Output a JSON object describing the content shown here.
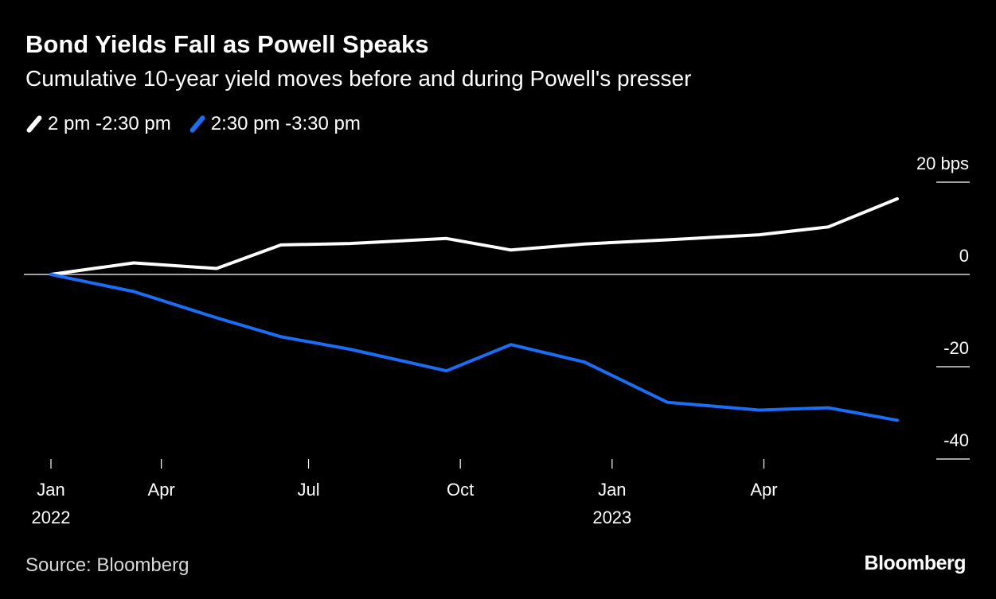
{
  "header": {
    "title": "Bond Yields Fall as Powell Speaks",
    "subtitle": "Cumulative 10-year yield moves before and during Powell's presser"
  },
  "legend": [
    {
      "label": "2 pm -2:30 pm",
      "color": "#ffffff"
    },
    {
      "label": "2:30 pm -3:30 pm",
      "color": "#1a6ef5"
    }
  ],
  "footer": {
    "source": "Source: Bloomberg",
    "brand": "Bloomberg"
  },
  "chart_data": {
    "type": "line",
    "title": "Bond Yields Fall as Powell Speaks",
    "subtitle": "Cumulative 10-year yield moves before and during Powell's presser",
    "ylabel_unit": "bps",
    "ylim": [
      -40,
      20
    ],
    "yticks": [
      {
        "value": 20,
        "label": "20 bps"
      },
      {
        "value": 0,
        "label": "0"
      },
      {
        "value": -20,
        "label": "-20"
      },
      {
        "value": -40,
        "label": "-40"
      }
    ],
    "xlim": [
      0,
      18.4
    ],
    "xticks": [
      {
        "value": 0,
        "label": "Jan",
        "sublabel": "2022"
      },
      {
        "value": 2.4,
        "label": "Apr",
        "sublabel": ""
      },
      {
        "value": 5.6,
        "label": "Jul",
        "sublabel": ""
      },
      {
        "value": 8.9,
        "label": "Oct",
        "sublabel": ""
      },
      {
        "value": 12.2,
        "label": "Jan",
        "sublabel": "2023"
      },
      {
        "value": 15.5,
        "label": "Apr",
        "sublabel": ""
      }
    ],
    "grid": false,
    "zero_line": true,
    "series": [
      {
        "name": "2 pm -2:30 pm",
        "color": "#ffffff",
        "x": [
          0,
          1.8,
          3.6,
          5.0,
          6.5,
          8.6,
          10.0,
          11.6,
          13.4,
          15.4,
          16.9,
          18.4
        ],
        "y": [
          0,
          2.5,
          1.3,
          6.4,
          6.7,
          7.8,
          5.3,
          6.6,
          7.5,
          8.6,
          10.3,
          16.4
        ]
      },
      {
        "name": "2:30 pm -3:30 pm",
        "color": "#1a6ef5",
        "x": [
          0,
          1.8,
          3.6,
          5.0,
          6.5,
          8.6,
          10.0,
          11.6,
          13.4,
          15.4,
          16.9,
          18.4
        ],
        "y": [
          0,
          -3.7,
          -9.4,
          -13.5,
          -16.2,
          -20.9,
          -15.2,
          -19.0,
          -27.7,
          -29.4,
          -28.9,
          -31.6
        ]
      }
    ]
  }
}
